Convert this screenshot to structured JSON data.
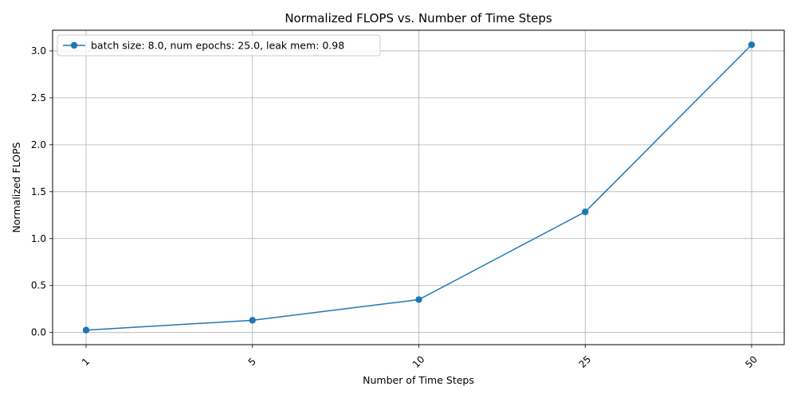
{
  "chart_data": {
    "type": "line",
    "title": "Normalized FLOPS vs. Number of Time Steps",
    "xlabel": "Number of Time Steps",
    "ylabel": "Normalized FLOPS",
    "categories": [
      "1",
      "5",
      "10",
      "25",
      "50"
    ],
    "series": [
      {
        "name": "batch size: 8.0, num epochs: 25.0, leak mem: 0.98",
        "values": [
          0.025,
          0.13,
          0.35,
          1.285,
          3.065
        ],
        "color": "#1f77b4",
        "marker": "circle"
      }
    ],
    "yticks": [
      "0.0",
      "0.5",
      "1.0",
      "1.5",
      "2.0",
      "2.5",
      "3.0"
    ],
    "ylim": [
      -0.13,
      3.22
    ],
    "grid": true,
    "legend_position": "upper-left",
    "xtick_rotation": 45
  }
}
